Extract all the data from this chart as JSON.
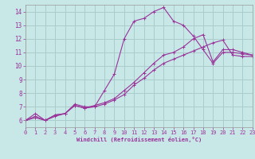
{
  "xlabel": "Windchill (Refroidissement éolien,°C)",
  "background_color": "#c8e8e8",
  "grid_color": "#aacccc",
  "line_color": "#993399",
  "xlim": [
    0,
    23
  ],
  "ylim": [
    5.5,
    14.5
  ],
  "xticks": [
    0,
    1,
    2,
    3,
    4,
    5,
    6,
    7,
    8,
    9,
    10,
    11,
    12,
    13,
    14,
    15,
    16,
    17,
    18,
    19,
    20,
    21,
    22,
    23
  ],
  "yticks": [
    6,
    7,
    8,
    9,
    10,
    11,
    12,
    13,
    14
  ],
  "series": [
    [
      6.0,
      6.5,
      6.0,
      6.4,
      6.5,
      7.2,
      7.0,
      7.0,
      8.2,
      9.4,
      12.0,
      13.3,
      13.5,
      14.0,
      14.3,
      13.3,
      13.0,
      12.2,
      11.2,
      10.2,
      11.0,
      11.0,
      10.9,
      10.8
    ],
    [
      6.0,
      6.3,
      6.0,
      6.4,
      6.5,
      7.1,
      6.9,
      7.1,
      7.3,
      7.6,
      8.2,
      8.8,
      9.5,
      10.2,
      10.8,
      11.0,
      11.4,
      12.0,
      12.3,
      10.3,
      11.2,
      11.2,
      11.0,
      10.8
    ],
    [
      6.0,
      6.2,
      6.0,
      6.3,
      6.5,
      7.1,
      6.9,
      7.0,
      7.2,
      7.5,
      7.9,
      8.6,
      9.1,
      9.7,
      10.2,
      10.5,
      10.8,
      11.1,
      11.4,
      11.7,
      11.9,
      10.8,
      10.7,
      10.7
    ]
  ]
}
